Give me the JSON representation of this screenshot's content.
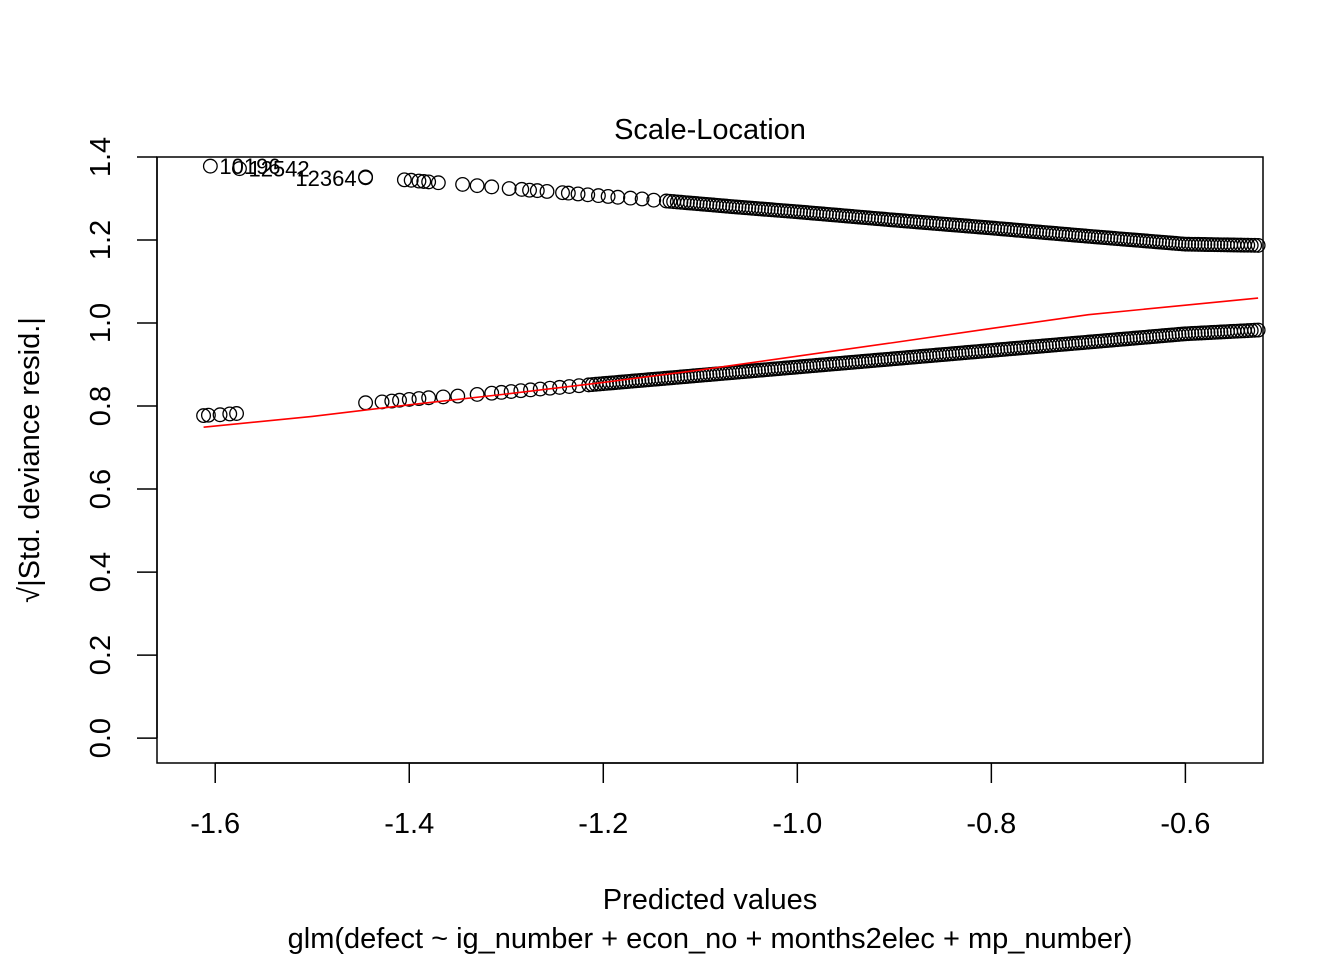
{
  "chart_data": {
    "type": "scatter",
    "title": "Scale-Location",
    "xlabel": "Predicted values",
    "subtitle": "glm(defect ~ ig_number + econ_no + months2elec + mp_number)",
    "ylabel": "√|Std. deviance resid.|",
    "xlim": [
      -1.66,
      -0.52
    ],
    "ylim": [
      -0.06,
      1.4
    ],
    "x_ticks": [
      -1.6,
      -1.4,
      -1.2,
      -1.0,
      -0.8,
      -0.6
    ],
    "x_tick_labels": [
      "-1.6",
      "-1.4",
      "-1.2",
      "-1.0",
      "-0.8",
      "-0.6"
    ],
    "y_ticks": [
      0.0,
      0.2,
      0.4,
      0.6,
      0.8,
      1.0,
      1.2,
      1.4
    ],
    "y_tick_labels": [
      "0.0",
      "0.2",
      "0.4",
      "0.6",
      "0.8",
      "1.0",
      "1.2",
      "1.4"
    ],
    "grid": false,
    "series": [
      {
        "role": "residual-points-upper",
        "marker": "open-circle",
        "color": "#000000",
        "x": [
          -1.605,
          -1.575,
          -1.445,
          -1.445,
          -1.405,
          -1.398,
          -1.39,
          -1.385,
          -1.38,
          -1.37,
          -1.345,
          -1.33,
          -1.315,
          -1.297,
          -1.284,
          -1.276,
          -1.268,
          -1.258,
          -1.242,
          -1.236,
          -1.226,
          -1.216,
          -1.205,
          -1.195,
          -1.185,
          -1.172,
          -1.16,
          -1.148,
          -1.135,
          -1.12,
          -1.1,
          -1.08,
          -1.06,
          -1.0,
          -0.9,
          -0.8,
          -0.7,
          -0.6,
          -0.55,
          -0.525
        ],
        "y": [
          1.378,
          1.372,
          1.352,
          1.35,
          1.345,
          1.344,
          1.342,
          1.341,
          1.34,
          1.338,
          1.334,
          1.331,
          1.328,
          1.324,
          1.322,
          1.32,
          1.319,
          1.317,
          1.314,
          1.313,
          1.311,
          1.309,
          1.307,
          1.305,
          1.303,
          1.301,
          1.299,
          1.296,
          1.294,
          1.291,
          1.287,
          1.283,
          1.279,
          1.268,
          1.248,
          1.229,
          1.209,
          1.19,
          1.188,
          1.187
        ]
      },
      {
        "role": "residual-points-lower",
        "marker": "open-circle",
        "color": "#000000",
        "x": [
          -1.612,
          -1.607,
          -1.595,
          -1.585,
          -1.578,
          -1.445,
          -1.428,
          -1.418,
          -1.41,
          -1.4,
          -1.39,
          -1.38,
          -1.365,
          -1.35,
          -1.33,
          -1.315,
          -1.305,
          -1.295,
          -1.285,
          -1.275,
          -1.265,
          -1.255,
          -1.245,
          -1.235,
          -1.225,
          -1.215,
          -1.2,
          -1.18,
          -1.16,
          -1.14,
          -1.12,
          -1.1,
          -1.05,
          -1.0,
          -0.95,
          -0.9,
          -0.85,
          -0.8,
          -0.75,
          -0.7,
          -0.65,
          -0.6,
          -0.55,
          -0.525
        ],
        "y": [
          0.777,
          0.778,
          0.779,
          0.781,
          0.782,
          0.808,
          0.81,
          0.812,
          0.814,
          0.816,
          0.818,
          0.82,
          0.822,
          0.824,
          0.828,
          0.831,
          0.833,
          0.835,
          0.837,
          0.839,
          0.841,
          0.843,
          0.845,
          0.847,
          0.849,
          0.851,
          0.854,
          0.858,
          0.862,
          0.866,
          0.87,
          0.874,
          0.884,
          0.894,
          0.904,
          0.914,
          0.924,
          0.934,
          0.944,
          0.954,
          0.964,
          0.974,
          0.98,
          0.983
        ]
      },
      {
        "role": "smoother",
        "marker": "line",
        "color": "#ff0000",
        "x": [
          -1.612,
          -1.5,
          -1.4,
          -1.3,
          -1.2,
          -1.1,
          -1.0,
          -0.9,
          -0.8,
          -0.7,
          -0.6,
          -0.525
        ],
        "y": [
          0.749,
          0.775,
          0.803,
          0.829,
          0.857,
          0.887,
          0.92,
          0.953,
          0.987,
          1.02,
          1.043,
          1.06
        ]
      }
    ],
    "annotations": [
      {
        "text": "10196",
        "x": -1.605,
        "y": 1.378,
        "side": "right"
      },
      {
        "text": "12542",
        "x": -1.575,
        "y": 1.372,
        "side": "right"
      },
      {
        "text": "12364",
        "x": -1.445,
        "y": 1.35,
        "side": "left"
      }
    ]
  }
}
